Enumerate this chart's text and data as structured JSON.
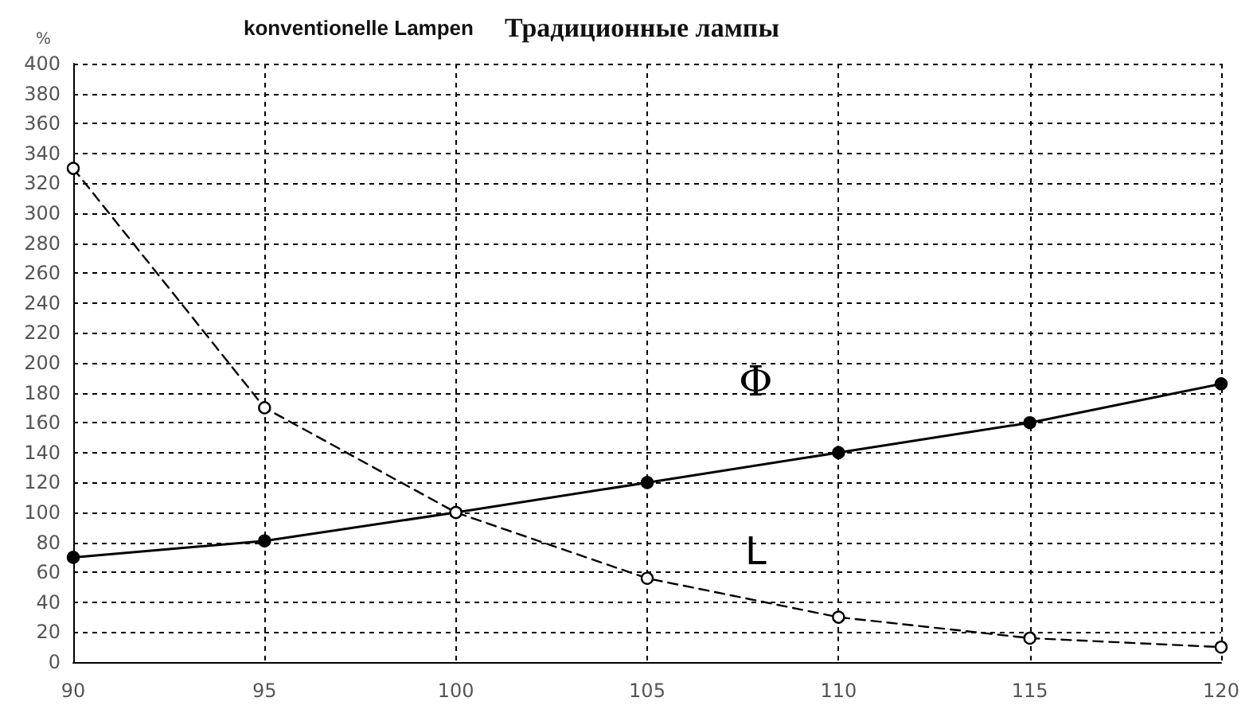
{
  "chart_data": {
    "type": "line",
    "title": "konventionelle Lampen",
    "subtitle": "Традиционные лампы",
    "ylabel": "%",
    "x": [
      90,
      95,
      100,
      105,
      110,
      115,
      120
    ],
    "series": [
      {
        "name": "Φ",
        "color": "#000000",
        "values": [
          70,
          81,
          100,
          120,
          140,
          160,
          186
        ],
        "line_style": "solid"
      },
      {
        "name": "L",
        "color": "#000000",
        "values": [
          330,
          170,
          100,
          56,
          30,
          16,
          10
        ],
        "line_style": "dashed"
      }
    ],
    "xlim": [
      90,
      120
    ],
    "xticks": [
      90,
      95,
      100,
      105,
      110,
      115,
      120
    ],
    "ylim": [
      0,
      400
    ],
    "yticks": [
      0,
      20,
      40,
      60,
      80,
      100,
      120,
      140,
      160,
      180,
      200,
      220,
      240,
      260,
      280,
      300,
      320,
      340,
      360,
      380,
      400
    ],
    "grid": true,
    "legend": false,
    "marker": "circle"
  }
}
